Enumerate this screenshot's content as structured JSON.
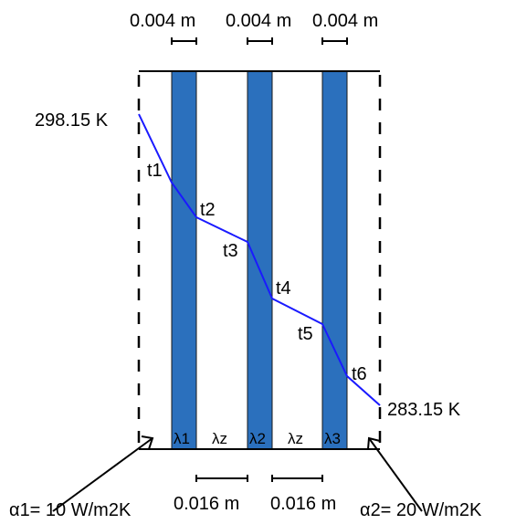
{
  "thickness": {
    "layer1": "0.004 m",
    "layer2": "0.004 m",
    "layer3": "0.004 m",
    "gap1": "0.016 m",
    "gap2": "0.016 m"
  },
  "temperatures": {
    "inside": "298.15 K",
    "outside": "283.15 K"
  },
  "nodes": [
    "t1",
    "t2",
    "t3",
    "t4",
    "t5",
    "t6"
  ],
  "materials": [
    "λ1",
    "λz",
    "λ2",
    "λz",
    "λ3"
  ],
  "coefficients": {
    "alpha1": "α1= 10 W/m2K",
    "alpha2": "α2= 20 W/m2K"
  },
  "colors": {
    "glass": "#2b70bd",
    "profile": "#1a1aff",
    "line": "#000000"
  }
}
